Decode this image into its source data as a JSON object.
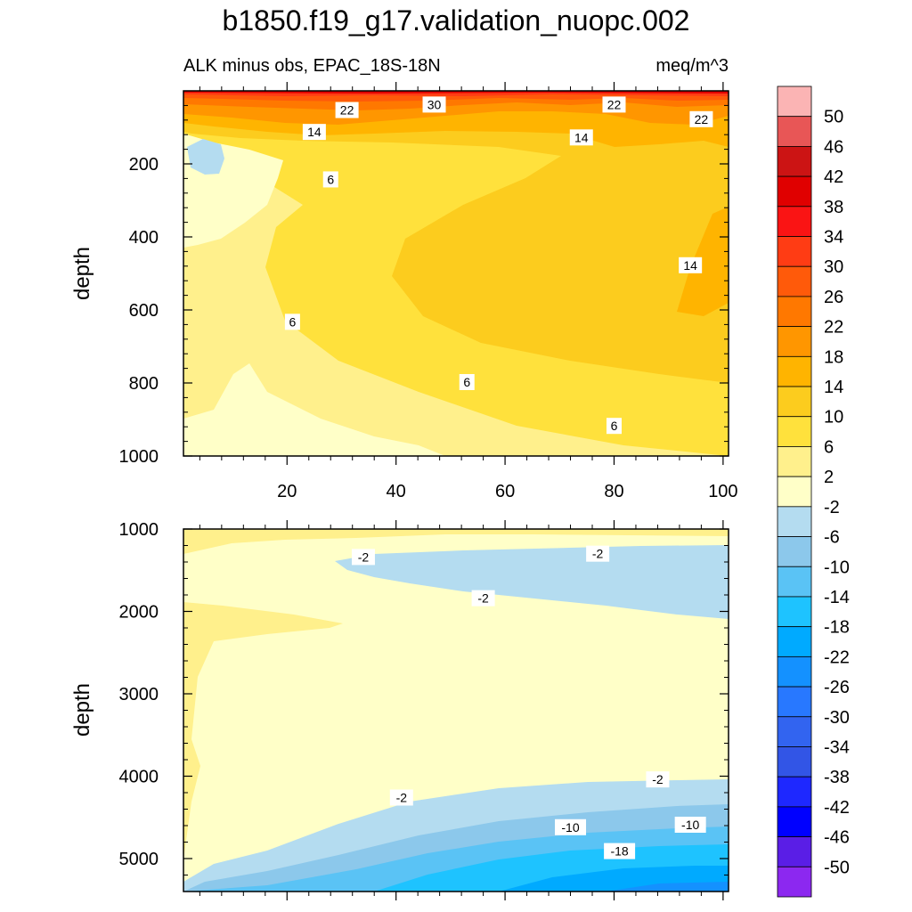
{
  "figure": {
    "title": "b1850.f19_g17.validation_nuopc.002",
    "subtitle_left": "ALK minus obs, EPAC_18S-18N",
    "subtitle_right": "meq/m^3"
  },
  "chart_data": [
    {
      "type": "heatmap",
      "panel": "upper",
      "ylabel": "depth",
      "xlim": [
        1,
        101
      ],
      "ylim": [
        0,
        1000
      ],
      "y_reversed": true,
      "xticks": [
        20,
        40,
        60,
        80,
        100
      ],
      "yticks": [
        200,
        400,
        600,
        800,
        1000
      ],
      "contour_labels": [
        {
          "value": "30",
          "x": 47,
          "y": 40
        },
        {
          "value": "22",
          "x": 31,
          "y": 55
        },
        {
          "value": "22",
          "x": 80,
          "y": 40
        },
        {
          "value": "22",
          "x": 96,
          "y": 80
        },
        {
          "value": "14",
          "x": 25,
          "y": 115
        },
        {
          "value": "14",
          "x": 74,
          "y": 130
        },
        {
          "value": "6",
          "x": 28,
          "y": 245
        },
        {
          "value": "14",
          "x": 94,
          "y": 480
        },
        {
          "value": "6",
          "x": 21,
          "y": 635
        },
        {
          "value": "6",
          "x": 53,
          "y": 800
        },
        {
          "value": "6",
          "x": 80,
          "y": 920
        }
      ]
    },
    {
      "type": "heatmap",
      "panel": "lower",
      "ylabel": "depth",
      "xlim": [
        1,
        101
      ],
      "ylim": [
        1000,
        5400
      ],
      "y_reversed": true,
      "yticks": [
        1000,
        2000,
        3000,
        4000,
        5000
      ],
      "contour_labels": [
        {
          "value": "-2",
          "x": 34,
          "y": 1350
        },
        {
          "value": "-2",
          "x": 77,
          "y": 1310
        },
        {
          "value": "-2",
          "x": 56,
          "y": 1850
        },
        {
          "value": "-2",
          "x": 41,
          "y": 4270
        },
        {
          "value": "-2",
          "x": 88,
          "y": 4050
        },
        {
          "value": "-10",
          "x": 72,
          "y": 4630
        },
        {
          "value": "-10",
          "x": 94,
          "y": 4600
        },
        {
          "value": "-18",
          "x": 81,
          "y": 4920
        }
      ]
    }
  ],
  "colorbar": {
    "labels": [
      "50",
      "46",
      "42",
      "38",
      "34",
      "30",
      "26",
      "22",
      "18",
      "14",
      "10",
      "6",
      "2",
      "-2",
      "-6",
      "-10",
      "-14",
      "-18",
      "-22",
      "-26",
      "-30",
      "-34",
      "-38",
      "-42",
      "-46",
      "-50"
    ],
    "colors": [
      "#fbb4b4",
      "#e85656",
      "#cc1414",
      "#e00000",
      "#fa1414",
      "#ff3c14",
      "#ff5a0a",
      "#ff7800",
      "#ff9600",
      "#ffb400",
      "#fccc1e",
      "#ffe13c",
      "#fff08c",
      "#ffffc8",
      "#b4dcf0",
      "#8cc8eb",
      "#5ac3f5",
      "#1ec3ff",
      "#00aaff",
      "#1491ff",
      "#2878ff",
      "#3264f0",
      "#3255e6",
      "#1e28ff",
      "#0000ff",
      "#5a1ee6",
      "#8c28f0"
    ]
  }
}
